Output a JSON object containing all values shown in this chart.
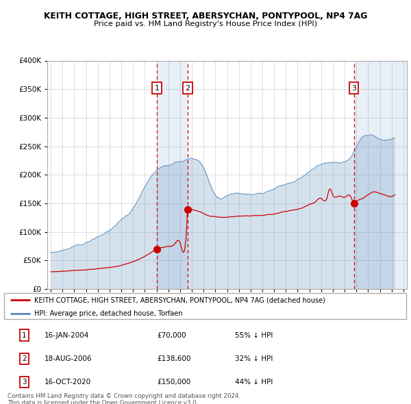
{
  "title": "KEITH COTTAGE, HIGH STREET, ABERSYCHAN, PONTYPOOL, NP4 7AG",
  "subtitle": "Price paid vs. HM Land Registry's House Price Index (HPI)",
  "legend_line1": "KEITH COTTAGE, HIGH STREET, ABERSYCHAN, PONTYPOOL, NP4 7AG (detached house)",
  "legend_line2": "HPI: Average price, detached house, Torfaen",
  "sale_color": "#cc0000",
  "hpi_color": "#5588bb",
  "shade_color": "#ddeeff",
  "ylim": [
    0,
    400000
  ],
  "yticks": [
    0,
    50000,
    100000,
    150000,
    200000,
    250000,
    300000,
    350000,
    400000
  ],
  "transactions": [
    {
      "num": 1,
      "date": "16-JAN-2004",
      "price": 70000,
      "pct": "55% ↓ HPI",
      "x_year": 2004.04
    },
    {
      "num": 2,
      "date": "18-AUG-2006",
      "price": 138600,
      "pct": "32% ↓ HPI",
      "x_year": 2006.63
    },
    {
      "num": 3,
      "date": "16-OCT-2020",
      "price": 150000,
      "pct": "44% ↓ HPI",
      "x_year": 2020.79
    }
  ],
  "footer_line1": "Contains HM Land Registry data © Crown copyright and database right 2024.",
  "footer_line2": "This data is licensed under the Open Government Licence v3.0.",
  "xlim": [
    1994.7,
    2025.3
  ],
  "xtick_start": 1995,
  "xtick_end": 2025
}
